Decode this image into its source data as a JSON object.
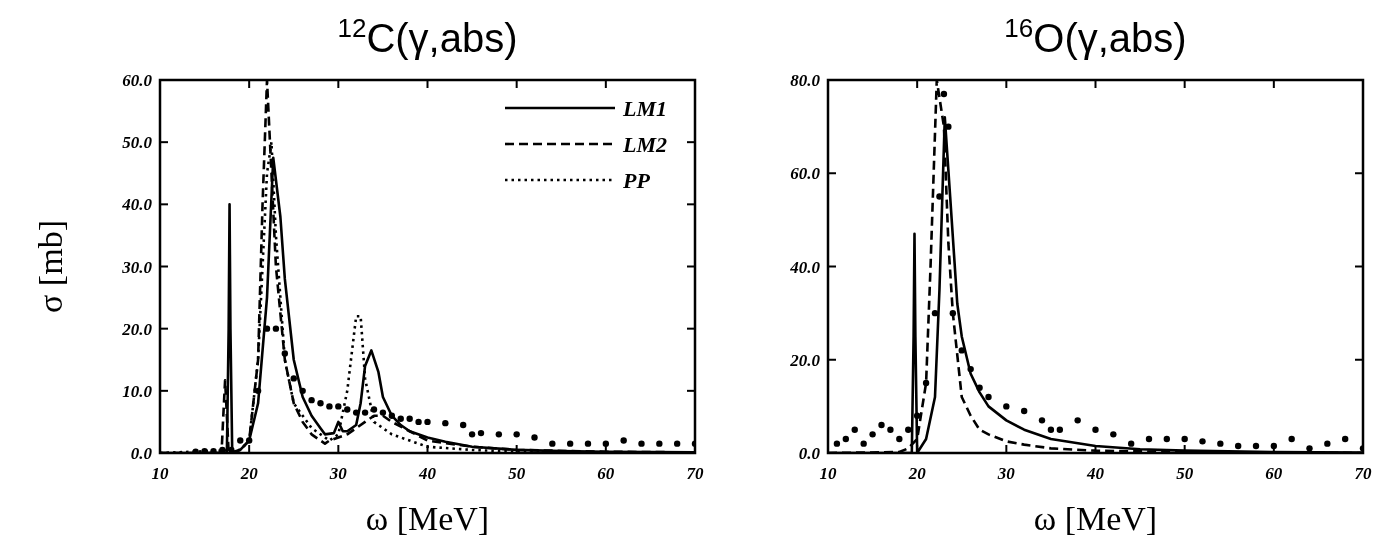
{
  "chart_data": [
    {
      "type": "line",
      "title": "$^{12}$C(γ,abs)",
      "xlabel": "ω [MeV]",
      "ylabel": "σ [mb]",
      "xlim": [
        10,
        70
      ],
      "ylim": [
        0,
        60
      ],
      "xticks": [
        10,
        20,
        30,
        40,
        50,
        60,
        70
      ],
      "yticks": [
        {
          "value": 0,
          "label": "0.0"
        },
        {
          "value": 10,
          "label": "10.0"
        },
        {
          "value": 20,
          "label": "20.0"
        },
        {
          "value": 30,
          "label": "30.0"
        },
        {
          "value": 40,
          "label": "40.0"
        },
        {
          "value": 50,
          "label": "50.0"
        },
        {
          "value": 60,
          "label": "60.0"
        }
      ],
      "grid": false,
      "legend": "top right",
      "series": [
        {
          "name": "LM1",
          "line_style": "solid",
          "color": "#000000",
          "x": [
            10,
            17.5,
            17.7,
            17.8,
            17.9,
            18.1,
            19,
            20,
            21,
            22,
            22.7,
            23.5,
            24,
            25,
            26,
            27,
            28,
            28.5,
            29.5,
            30,
            30.5,
            31,
            32,
            32.5,
            33,
            33.7,
            34.5,
            35,
            36,
            37,
            38,
            40,
            42,
            45,
            50,
            55,
            60,
            70
          ],
          "values": [
            0,
            0,
            20,
            40,
            20,
            0,
            0.5,
            2,
            8,
            25,
            47.5,
            38,
            28,
            15,
            9,
            6,
            4,
            3,
            3.2,
            5,
            3.5,
            3.5,
            4.5,
            8,
            14,
            16.5,
            13,
            9,
            6,
            4.5,
            3.5,
            2.5,
            1.8,
            1,
            0.5,
            0.3,
            0.2,
            0.1
          ]
        },
        {
          "name": "LM2",
          "line_style": "dashed",
          "color": "#000000",
          "x": [
            10,
            16.9,
            17.1,
            17.3,
            17.5,
            17.7,
            19,
            20,
            21,
            21.5,
            22,
            22.5,
            23,
            24,
            25,
            26,
            27,
            28,
            28.5,
            29,
            30,
            31,
            32,
            33,
            34,
            35,
            36,
            38,
            40,
            45,
            50,
            60,
            70
          ],
          "values": [
            0,
            0,
            6,
            11.7,
            6,
            0,
            0.5,
            2,
            15,
            40,
            60,
            45,
            30,
            15,
            8,
            5,
            3,
            2,
            1.5,
            2,
            2.5,
            3,
            4,
            5,
            6,
            6,
            5,
            3.5,
            2,
            1,
            0.5,
            0.2,
            0.1
          ]
        },
        {
          "name": "PP",
          "line_style": "dotted",
          "color": "#000000",
          "x": [
            10,
            19,
            20,
            21,
            22,
            22.5,
            23,
            24,
            25,
            27,
            29,
            30,
            31,
            32,
            32.5,
            33,
            34,
            36,
            38,
            40,
            45,
            50,
            60,
            70
          ],
          "values": [
            0,
            0.5,
            2,
            15,
            45,
            50,
            35,
            15,
            8,
            4,
            2,
            3,
            10,
            22,
            22,
            12,
            5,
            3,
            2,
            1,
            0.5,
            0.2,
            0.1,
            0
          ]
        },
        {
          "type": "scatter",
          "marker": "circle",
          "color": "#000000",
          "x": [
            14,
            15,
            16,
            17,
            18,
            19,
            20,
            21,
            22,
            23,
            24,
            25,
            26,
            27,
            28,
            29,
            30,
            31,
            32,
            33,
            34,
            35,
            36,
            37,
            38,
            39,
            40,
            42,
            44,
            45,
            46,
            48,
            50,
            52,
            54,
            56,
            58,
            60,
            62,
            64,
            66,
            68,
            70
          ],
          "values": [
            0.2,
            0.3,
            0.3,
            0.5,
            0.5,
            2,
            2,
            10,
            20,
            20,
            16,
            12,
            10,
            8.5,
            8,
            7.5,
            7.5,
            7,
            6.5,
            6.5,
            7,
            6.5,
            6,
            5.5,
            5.5,
            5,
            5,
            4.8,
            4.5,
            3,
            3.2,
            3,
            3,
            2.5,
            1.5,
            1.5,
            1.5,
            1.5,
            2,
            1.5,
            1.5,
            1.5,
            1.5
          ]
        }
      ]
    },
    {
      "type": "line",
      "title": "$^{16}$O(γ,abs)",
      "xlabel": "ω [MeV]",
      "xlim": [
        10,
        70
      ],
      "ylim": [
        0,
        80
      ],
      "xticks": [
        10,
        20,
        30,
        40,
        50,
        60,
        70
      ],
      "yticks": [
        {
          "value": 0,
          "label": "0.0"
        },
        {
          "value": 20,
          "label": "20.0"
        },
        {
          "value": 40,
          "label": "40.0"
        },
        {
          "value": 60,
          "label": "60.0"
        },
        {
          "value": 80,
          "label": "80.0"
        }
      ],
      "grid": false,
      "legend": false,
      "series": [
        {
          "line_style": "solid",
          "color": "#000000",
          "x": [
            10,
            19.4,
            19.6,
            19.7,
            19.8,
            20,
            21,
            22,
            22.5,
            23.1,
            23.7,
            24.5,
            25,
            26,
            27,
            28,
            30,
            32,
            35,
            40,
            45,
            50,
            60,
            70
          ],
          "values": [
            0,
            0,
            25,
            47,
            25,
            0,
            3,
            12,
            35,
            72,
            55,
            32,
            25,
            17,
            13,
            10,
            7,
            5,
            3,
            1.5,
            0.8,
            0.5,
            0.2,
            0.1
          ]
        },
        {
          "line_style": "dashed",
          "color": "#000000",
          "x": [
            10,
            18,
            19,
            20,
            21,
            21.5,
            22.2,
            23,
            23.5,
            24,
            25,
            26,
            27,
            28,
            30,
            32,
            35,
            40,
            50,
            60,
            70
          ],
          "values": [
            0,
            0.2,
            1,
            3,
            15,
            40,
            80,
            70,
            45,
            30,
            12,
            8,
            5,
            4,
            2.5,
            1.8,
            1,
            0.5,
            0.2,
            0.1,
            0
          ]
        },
        {
          "type": "scatter",
          "marker": "circle",
          "color": "#000000",
          "x": [
            11,
            12,
            13,
            14,
            15,
            16,
            17,
            18,
            19,
            20,
            21,
            22,
            22.5,
            23,
            23.5,
            24,
            25,
            26,
            27,
            28,
            30,
            32,
            34,
            35,
            36,
            38,
            40,
            42,
            44,
            46,
            48,
            50,
            52,
            54,
            56,
            58,
            60,
            62,
            64,
            66,
            68,
            70
          ],
          "values": [
            2,
            3,
            5,
            2,
            4,
            6,
            5,
            3,
            5,
            8,
            15,
            30,
            55,
            77,
            70,
            30,
            22,
            18,
            14,
            12,
            10,
            9,
            7,
            5,
            5,
            7,
            5,
            4,
            2,
            3,
            3,
            3,
            2.5,
            2,
            1.5,
            1.5,
            1.5,
            3,
            1,
            2,
            3,
            1
          ]
        }
      ]
    }
  ]
}
